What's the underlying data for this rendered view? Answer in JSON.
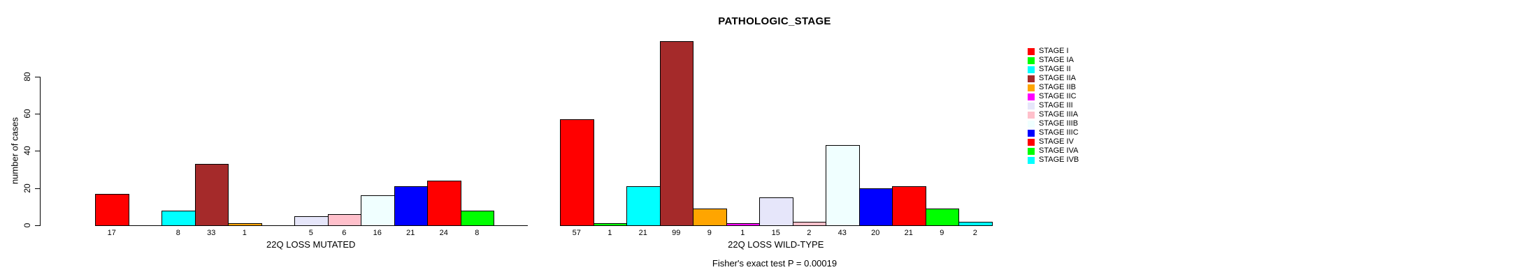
{
  "chart_data": {
    "type": "bar",
    "title": "PATHOLOGIC_STAGE",
    "ylabel": "number of cases",
    "annotation": "Fisher's exact test P = 0.00019",
    "yticks": [
      0,
      20,
      40,
      60,
      80
    ],
    "axis_max": 80,
    "grid": false,
    "legend_position": "right",
    "categories": [
      "STAGE I",
      "STAGE IA",
      "STAGE II",
      "STAGE IIA",
      "STAGE IIB",
      "STAGE IIC",
      "STAGE III",
      "STAGE IIIA",
      "STAGE IIIB",
      "STAGE IIIC",
      "STAGE IV",
      "STAGE IVA",
      "STAGE IVB"
    ],
    "colors": [
      "#FF0000",
      "#00FF00",
      "#00FFFF",
      "#A52A2A",
      "#FFA500",
      "#FF00FF",
      "#E6E6FA",
      "#FFC0CB",
      "#F0FFFF",
      "#0000FF",
      "#FF0000",
      "#00FF00",
      "#00FFFF"
    ],
    "series": [
      {
        "name": "22Q LOSS MUTATED",
        "values": [
          17,
          0,
          8,
          33,
          1,
          0,
          5,
          6,
          16,
          21,
          24,
          8,
          0
        ]
      },
      {
        "name": "22Q LOSS WILD-TYPE",
        "values": [
          57,
          1,
          21,
          99,
          9,
          1,
          15,
          2,
          43,
          20,
          21,
          9,
          2
        ]
      }
    ]
  }
}
